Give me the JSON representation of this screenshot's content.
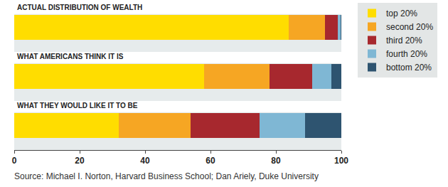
{
  "chart_data": {
    "type": "bar",
    "orientation": "horizontal",
    "stacked": true,
    "categories": [
      "ACTUAL DISTRIBUTION OF WEALTH",
      "WHAT AMERICANS THINK IT IS",
      "WHAT THEY WOULD LIKE IT TO BE"
    ],
    "series": [
      {
        "name": "top 20%",
        "color": "#FFDD00",
        "values": [
          84,
          58,
          32
        ]
      },
      {
        "name": "second 20%",
        "color": "#F6A623",
        "values": [
          11,
          20,
          22
        ]
      },
      {
        "name": "third 20%",
        "color": "#A7282E",
        "values": [
          4,
          13,
          21
        ]
      },
      {
        "name": "fourth 20%",
        "color": "#7FB7D4",
        "values": [
          0.7,
          6,
          14
        ]
      },
      {
        "name": "bottom 20%",
        "color": "#2E5470",
        "values": [
          0.3,
          3,
          11
        ]
      }
    ],
    "xlim": [
      0,
      100
    ],
    "xticks": [
      0,
      20,
      40,
      60,
      80,
      100
    ],
    "grid": false,
    "legend": "upper right",
    "tick_labels": "x",
    "annotations": [
      "Source: Michael I. Norton, Harvard Business School; Dan Ariely, Duke University"
    ]
  }
}
